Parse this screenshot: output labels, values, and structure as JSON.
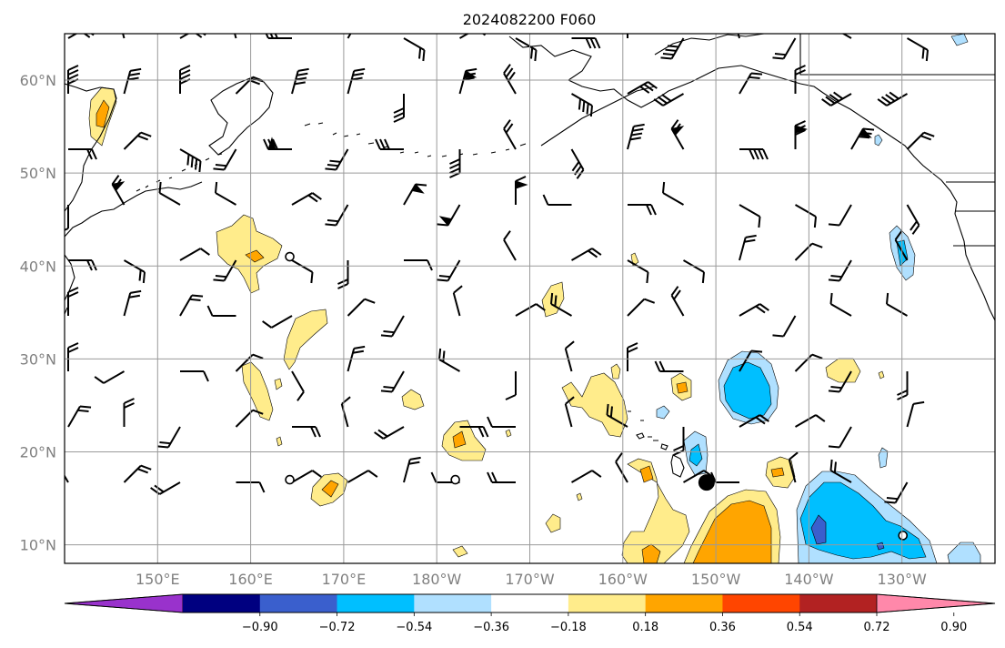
{
  "title": "2024082200 F060",
  "map": {
    "lon_range": [
      140,
      240
    ],
    "lat_range": [
      8,
      65
    ],
    "lon_ticks": [
      {
        "lon": 150,
        "label": "150°E"
      },
      {
        "lon": 160,
        "label": "160°E"
      },
      {
        "lon": 170,
        "label": "170°E"
      },
      {
        "lon": 180,
        "label": "180°W"
      },
      {
        "lon": 190,
        "label": "170°W"
      },
      {
        "lon": 200,
        "label": "160°W"
      },
      {
        "lon": 210,
        "label": "150°W"
      },
      {
        "lon": 220,
        "label": "140°W"
      },
      {
        "lon": 230,
        "label": "130°W"
      }
    ],
    "lat_ticks": [
      {
        "lat": 10,
        "label": "10°N"
      },
      {
        "lat": 20,
        "label": "20°N"
      },
      {
        "lat": 30,
        "label": "30°N"
      },
      {
        "lat": 40,
        "label": "40°N"
      },
      {
        "lat": 50,
        "label": "50°N"
      },
      {
        "lat": 60,
        "label": "60°N"
      }
    ],
    "grid": true,
    "markers": [
      {
        "lon": 209,
        "lat": 16.7,
        "type": "storm-center-filled"
      },
      {
        "lon": 164.2,
        "lat": 41,
        "type": "calm-circle"
      },
      {
        "lon": 164.2,
        "lat": 17,
        "type": "calm-circle"
      },
      {
        "lon": 182,
        "lat": 17,
        "type": "calm-circle"
      },
      {
        "lon": 230.1,
        "lat": 11,
        "type": "calm-circle"
      }
    ]
  },
  "colorbar": {
    "levels": [
      "−0.90",
      "−0.72",
      "−0.54",
      "−0.36",
      "−0.18",
      "0.18",
      "0.36",
      "0.54",
      "0.72",
      "0.90"
    ],
    "colors": [
      "#9932cc",
      "#000080",
      "#3a5fcd",
      "#00bfff",
      "#b0e0ff",
      "#ffffff",
      "#ffec8b",
      "#ffa500",
      "#ff4500",
      "#b22222",
      "#ff88aa"
    ],
    "extend": "both"
  },
  "palette": {
    "pos1": "#ffec8b",
    "pos2": "#ffa500",
    "neg1": "#b0e0ff",
    "neg2": "#00bfff",
    "neg3": "#3a5fcd"
  }
}
